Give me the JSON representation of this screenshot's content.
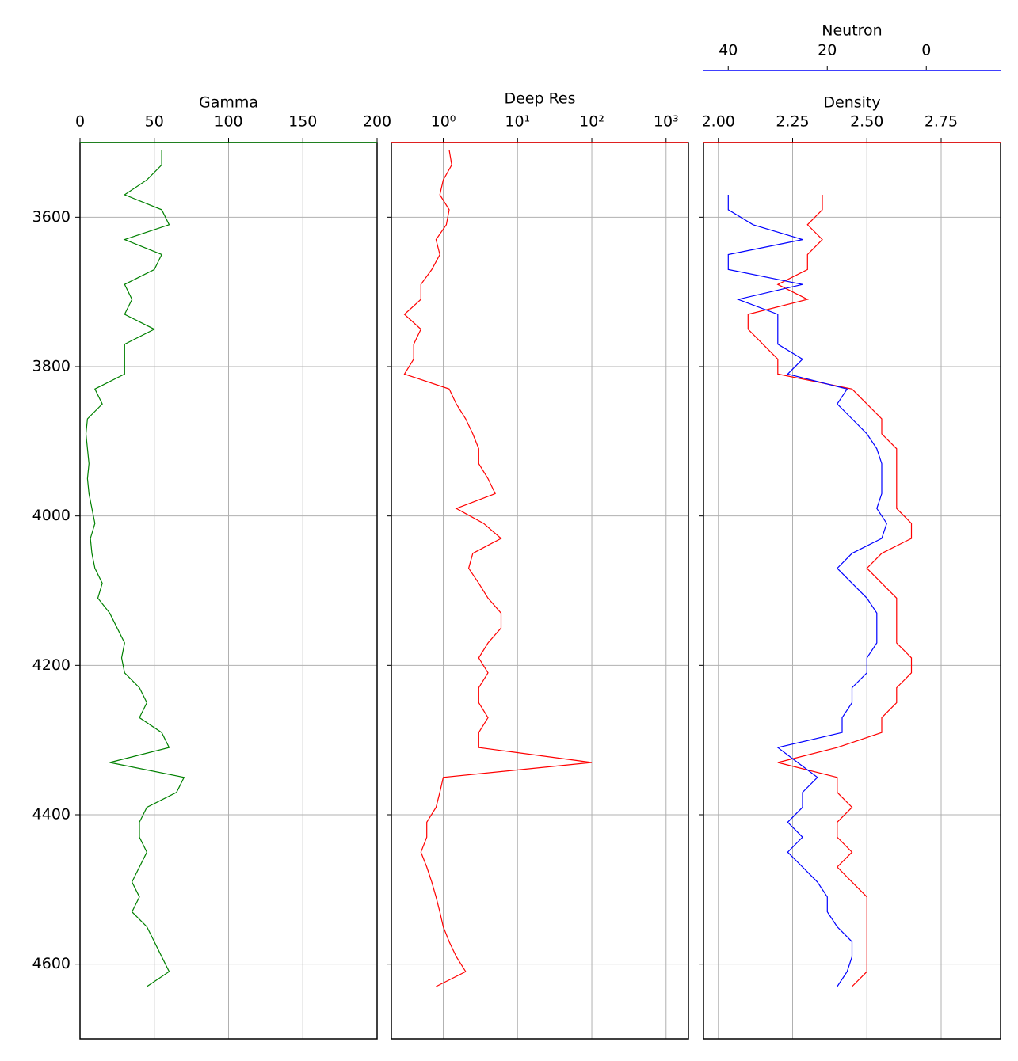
{
  "chart_data": [
    {
      "type": "line",
      "xlabel": "Gamma",
      "xlim": [
        0,
        200
      ],
      "xticks": [
        0,
        50,
        100,
        150,
        200
      ],
      "ylim": [
        4700,
        3500
      ],
      "yticks": [
        3600,
        3800,
        4000,
        4200,
        4400,
        4600
      ],
      "ytick_labels": true,
      "grid": true,
      "y": [
        3510,
        3530,
        3550,
        3570,
        3590,
        3610,
        3630,
        3650,
        3670,
        3690,
        3710,
        3730,
        3750,
        3770,
        3790,
        3810,
        3830,
        3850,
        3870,
        3890,
        3910,
        3930,
        3950,
        3970,
        3990,
        4010,
        4030,
        4050,
        4070,
        4090,
        4110,
        4130,
        4150,
        4170,
        4190,
        4210,
        4230,
        4250,
        4270,
        4290,
        4310,
        4330,
        4350,
        4370,
        4390,
        4410,
        4430,
        4450,
        4470,
        4490,
        4510,
        4530,
        4550,
        4570,
        4590,
        4610,
        4630
      ],
      "series": [
        {
          "name": "Gamma",
          "color": "green",
          "values": [
            55,
            55,
            45,
            30,
            55,
            60,
            30,
            55,
            50,
            30,
            35,
            30,
            50,
            30,
            30,
            30,
            10,
            15,
            5,
            4,
            5,
            6,
            5,
            6,
            8,
            10,
            7,
            8,
            10,
            15,
            12,
            20,
            25,
            30,
            28,
            30,
            40,
            45,
            40,
            55,
            60,
            20,
            70,
            65,
            45,
            40,
            40,
            45,
            40,
            35,
            40,
            35,
            45,
            50,
            55,
            60,
            45
          ]
        }
      ]
    },
    {
      "type": "line",
      "xlabel": "Deep Res",
      "xlim": [
        0.2,
        2000
      ],
      "log_x": true,
      "xticks": [
        {
          "value": 1,
          "label": "10⁰"
        },
        {
          "value": 10,
          "label": "10¹"
        },
        {
          "value": 100,
          "label": "10²"
        },
        {
          "value": 1000,
          "label": "10³"
        }
      ],
      "ylim": [
        4700,
        3500
      ],
      "yticks": [
        3600,
        3800,
        4000,
        4200,
        4400,
        4600
      ],
      "ytick_labels": false,
      "grid": true,
      "y": [
        3510,
        3530,
        3550,
        3570,
        3590,
        3610,
        3630,
        3650,
        3670,
        3690,
        3710,
        3730,
        3750,
        3770,
        3790,
        3810,
        3830,
        3850,
        3870,
        3890,
        3910,
        3930,
        3950,
        3970,
        3990,
        4010,
        4030,
        4050,
        4070,
        4090,
        4110,
        4130,
        4150,
        4170,
        4190,
        4210,
        4230,
        4250,
        4270,
        4290,
        4310,
        4330,
        4350,
        4370,
        4390,
        4410,
        4430,
        4450,
        4470,
        4490,
        4510,
        4530,
        4550,
        4570,
        4590,
        4610,
        4630
      ],
      "series": [
        {
          "name": "Deep Res",
          "color": "red",
          "values": [
            1.2,
            1.3,
            1.0,
            0.9,
            1.2,
            1.1,
            0.8,
            0.9,
            0.7,
            0.5,
            0.5,
            0.3,
            0.5,
            0.4,
            0.4,
            0.3,
            1.2,
            1.5,
            2.0,
            2.5,
            3.0,
            3.0,
            4.0,
            5.0,
            1.5,
            3.5,
            6.0,
            2.5,
            2.2,
            3.0,
            4.0,
            6.0,
            6.0,
            4.0,
            3.0,
            4.0,
            3.0,
            3.0,
            4.0,
            3.0,
            3.0,
            100,
            1.0,
            0.9,
            0.8,
            0.6,
            0.6,
            0.5,
            0.6,
            0.7,
            0.8,
            0.9,
            1.0,
            1.2,
            1.5,
            2.0,
            0.8
          ]
        }
      ]
    },
    {
      "type": "line",
      "xlabel": "Density",
      "xlim": [
        1.95,
        2.95
      ],
      "xticks": [
        {
          "value": 2,
          "label": "2.00"
        },
        2.25,
        {
          "value": 2.5,
          "label": "2.50"
        },
        2.75
      ],
      "x2label": "Neutron",
      "x2lim": [
        45,
        -15
      ],
      "x2ticks": [
        40,
        20,
        0
      ],
      "ylim": [
        4700,
        3500
      ],
      "yticks": [
        3600,
        3800,
        4000,
        4200,
        4400,
        4600
      ],
      "ytick_labels": false,
      "grid": true,
      "y": [
        3510,
        3530,
        3550,
        3570,
        3590,
        3610,
        3630,
        3650,
        3670,
        3690,
        3710,
        3730,
        3750,
        3770,
        3790,
        3810,
        3830,
        3850,
        3870,
        3890,
        3910,
        3930,
        3950,
        3970,
        3990,
        4010,
        4030,
        4050,
        4070,
        4090,
        4110,
        4130,
        4150,
        4170,
        4190,
        4210,
        4230,
        4250,
        4270,
        4290,
        4310,
        4330,
        4350,
        4370,
        4390,
        4410,
        4430,
        4450,
        4470,
        4490,
        4510,
        4530,
        4550,
        4570,
        4590,
        4610,
        4630
      ],
      "series": [
        {
          "name": "Density",
          "color": "red",
          "values": [
            null,
            null,
            null,
            2.35,
            2.35,
            2.3,
            2.35,
            2.3,
            2.3,
            2.2,
            2.3,
            2.1,
            2.1,
            2.15,
            2.2,
            2.2,
            2.45,
            2.5,
            2.55,
            2.55,
            2.6,
            2.6,
            2.6,
            2.6,
            2.6,
            2.65,
            2.65,
            2.55,
            2.5,
            2.55,
            2.6,
            2.6,
            2.6,
            2.6,
            2.65,
            2.65,
            2.6,
            2.6,
            2.55,
            2.55,
            2.4,
            2.2,
            2.4,
            2.4,
            2.45,
            2.4,
            2.4,
            2.45,
            2.4,
            2.45,
            2.5,
            2.5,
            2.5,
            2.5,
            2.5,
            2.5,
            2.45
          ]
        },
        {
          "name": "Neutron",
          "color": "blue",
          "axis": "x2",
          "values": [
            null,
            null,
            null,
            40,
            40,
            35,
            25,
            40,
            40,
            25,
            38,
            30,
            30,
            30,
            25,
            28,
            16,
            18,
            15,
            12,
            10,
            9,
            9,
            9,
            10,
            8,
            9,
            15,
            18,
            15,
            12,
            10,
            10,
            10,
            12,
            12,
            15,
            15,
            17,
            17,
            30,
            26,
            22,
            25,
            25,
            28,
            25,
            28,
            25,
            22,
            20,
            20,
            18,
            15,
            15,
            16,
            18
          ]
        }
      ]
    }
  ]
}
